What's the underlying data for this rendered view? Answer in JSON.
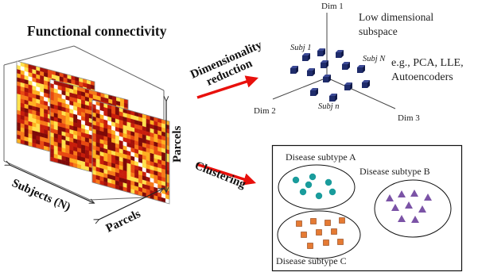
{
  "left_panel": {
    "title": "Functional connectivity",
    "axis_subjects": "Subjects (N)",
    "axis_parcels_bottom": "Parcels",
    "axis_parcels_side": "Parcels",
    "matrix_palette": [
      "#ffe14d",
      "#ffb020",
      "#f77a1a",
      "#e84a12",
      "#c81e0c",
      "#a3110a",
      "#7e0a08"
    ],
    "diagonal_color": "#ffffff"
  },
  "arrows": {
    "top_label_line1": "Dimensionality",
    "top_label_line2": "reduction",
    "bottom_label": "Clustering",
    "arrow_color": "#e8100c"
  },
  "embedding_panel": {
    "axis_dim1": "Dim 1",
    "axis_dim2": "Dim 2",
    "axis_dim3": "Dim 3",
    "subspace_line1": "Low dimensional",
    "subspace_line2": "subspace",
    "methods_line1": "e.g., PCA, LLE,",
    "methods_line2": "Autoencoders",
    "subject_labels": [
      "Subj 1",
      "Subj N",
      "Subj n"
    ],
    "cube_color": "#1f2c6b"
  },
  "cluster_panel": {
    "subtype_a": "Disease subtype A",
    "subtype_b": "Disease subtype B",
    "subtype_c": "Disease subtype C",
    "colors": {
      "circle": "#1a9c9c",
      "triangle": "#7b53a6",
      "square": "#e57a33"
    }
  }
}
